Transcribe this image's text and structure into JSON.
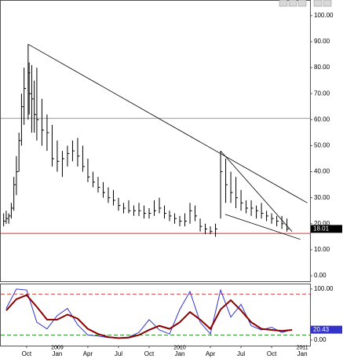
{
  "chart_data": [
    {
      "type": "ohlc",
      "x": [
        6.75,
        7.0,
        7.25,
        7.5,
        7.75,
        8.0,
        8.25,
        8.5,
        8.75,
        9.15,
        9.25,
        9.5,
        9.75,
        10.0,
        10.5,
        11.0,
        11.5,
        12.0,
        12.5,
        13.0,
        13.5,
        14.0,
        14.5,
        15.0,
        15.5,
        16.0,
        16.5,
        17.0,
        17.5,
        18.0,
        18.5,
        19.0,
        19.5,
        20.0,
        20.5,
        21.0,
        21.5,
        22.0,
        22.5,
        23.0,
        23.5,
        24.0,
        24.5,
        25.0,
        25.5,
        26.0,
        26.5,
        27.0,
        27.5,
        28.0,
        28.5,
        29.0,
        29.5,
        30.0,
        30.5,
        31.0,
        31.5,
        32.0,
        32.5,
        33.0,
        33.5,
        34.0,
        34.5
      ],
      "high": [
        24,
        25,
        24,
        28,
        38,
        46,
        55,
        70,
        80,
        89,
        82,
        81,
        75,
        80,
        68,
        62,
        58,
        52,
        48,
        50,
        52,
        53,
        50,
        45,
        40,
        38,
        36,
        34,
        33,
        30,
        28,
        29,
        27,
        28,
        27,
        26,
        29,
        30,
        27,
        25,
        24,
        23,
        24,
        28,
        27,
        22,
        20,
        19,
        20,
        48,
        45,
        40,
        38,
        33,
        29,
        29,
        27,
        28,
        25,
        24,
        23,
        23,
        22
      ],
      "low": [
        19,
        20,
        20,
        22,
        25,
        31,
        40,
        50,
        58,
        60,
        62,
        55,
        55,
        52,
        50,
        48,
        42,
        40,
        38,
        42,
        44,
        42,
        40,
        36,
        34,
        32,
        30,
        28,
        27,
        25,
        24,
        24,
        23,
        23,
        22,
        22,
        23,
        24,
        22,
        21,
        20,
        19,
        19,
        20,
        21,
        17,
        16,
        16,
        15,
        22,
        28,
        28,
        26,
        25,
        24,
        23,
        22,
        22,
        21,
        20,
        19,
        18,
        17
      ],
      "close": [
        21,
        22,
        23,
        26,
        35,
        40,
        52,
        65,
        72,
        78,
        70,
        68,
        62,
        60,
        56,
        55,
        45,
        44,
        45,
        47,
        48,
        46,
        42,
        38,
        36,
        34,
        32,
        30,
        29,
        27,
        26,
        25,
        25,
        25,
        24,
        24,
        25,
        26,
        24,
        23,
        22,
        21,
        21,
        25,
        23,
        19,
        18,
        17,
        18,
        40,
        35,
        32,
        30,
        28,
        26,
        26,
        25,
        24,
        23,
        22,
        21,
        20,
        18.01
      ],
      "color": "#000000",
      "xlim": [
        6.47,
        36.76
      ],
      "ylim": [
        -2.1,
        106
      ],
      "yticks": [
        {
          "value": 0,
          "label": "0.00"
        },
        {
          "value": 10,
          "label": "10.00"
        },
        {
          "value": 20,
          "label": "20.00"
        },
        {
          "value": 30,
          "label": "30.00"
        },
        {
          "value": 40,
          "label": "40.00"
        },
        {
          "value": 50,
          "label": "50.00"
        },
        {
          "value": 60,
          "label": "60.00"
        },
        {
          "value": 70,
          "label": "70.00"
        },
        {
          "value": 80,
          "label": "80.00"
        },
        {
          "value": 90,
          "label": "90.00"
        },
        {
          "value": 100,
          "label": "100.00"
        }
      ],
      "trendlines": [
        {
          "x": [
            9.15,
            36.5
          ],
          "y": [
            89,
            28
          ]
        },
        {
          "x": [
            28.0,
            35.0
          ],
          "y": [
            48,
            17
          ]
        },
        {
          "x": [
            28.45,
            35.8
          ],
          "y": [
            23.6,
            14
          ]
        }
      ],
      "hlines": [
        {
          "value": 60.5,
          "color": "#999999"
        },
        {
          "value": 16.3,
          "color": "#e03030"
        }
      ]
    },
    {
      "type": "line",
      "x": [
        7,
        8,
        9,
        10,
        11,
        12,
        13,
        14,
        15,
        16,
        17,
        18,
        19,
        20,
        21,
        22,
        23,
        24,
        25,
        26,
        27,
        28,
        29,
        30,
        31,
        32,
        33,
        34,
        35
      ],
      "series": [
        {
          "color": "#3333cc",
          "values": [
            62,
            100,
            98,
            35,
            22,
            48,
            62,
            30,
            10,
            8,
            5,
            4,
            6,
            15,
            40,
            20,
            12,
            60,
            95,
            35,
            12,
            98,
            45,
            70,
            28,
            20,
            25,
            15,
            20.43
          ]
        },
        {
          "color": "#8b0000",
          "values": [
            58,
            80,
            88,
            65,
            40,
            40,
            50,
            42,
            22,
            12,
            6,
            4,
            5,
            10,
            20,
            28,
            22,
            35,
            55,
            40,
            22,
            60,
            78,
            58,
            35,
            22,
            20,
            18,
            20
          ]
        }
      ],
      "xlim": [
        6.47,
        36.76
      ],
      "ylim": [
        -10.8,
        109
      ],
      "yticks": [
        {
          "value": 0,
          "label": "0.00"
        },
        {
          "value": 100,
          "label": "100.00"
        }
      ],
      "hlines": [
        {
          "value": 90,
          "color": "#e04040"
        },
        {
          "value": 10,
          "color": "#2a9d2a"
        }
      ],
      "xticks": [
        {
          "value": 9,
          "label": "Oct"
        },
        {
          "value": 12,
          "label": "Jan"
        },
        {
          "value": 15,
          "label": "Apr"
        },
        {
          "value": 18,
          "label": "Jul"
        },
        {
          "value": 21,
          "label": "Oct"
        },
        {
          "value": 24,
          "label": "Jan"
        },
        {
          "value": 27,
          "label": "Apr"
        },
        {
          "value": 30,
          "label": "Jul"
        },
        {
          "value": 33,
          "label": "Oct"
        },
        {
          "value": 36,
          "label": "Jan"
        }
      ],
      "year_labels": [
        {
          "value": 12,
          "label": "2009"
        },
        {
          "value": 24,
          "label": "2010"
        },
        {
          "value": 36,
          "label": "2011"
        }
      ]
    }
  ]
}
